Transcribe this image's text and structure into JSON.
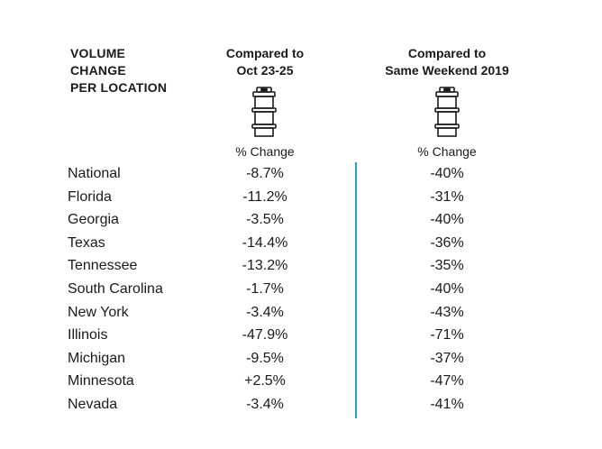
{
  "header": {
    "title_lines": [
      "VOLUME",
      "CHANGE",
      "PER LOCATION"
    ],
    "col1_lines": [
      "Compared to",
      "Oct 23-25"
    ],
    "col2_lines": [
      "Compared to",
      "Same Weekend 2019"
    ],
    "col1_sub": "% Change",
    "col2_sub": "% Change",
    "icon": "keg-icon",
    "divider_color": "#2a9fc9"
  },
  "chart_data": {
    "type": "table",
    "columns": [
      "Compared to Oct 23-25",
      "Compared to Same Weekend 2019"
    ],
    "rows": [
      {
        "location": "National",
        "vs_oct": "-8.7%",
        "vs_2019": "-40%"
      },
      {
        "location": "Florida",
        "vs_oct": "-11.2%",
        "vs_2019": "-31%"
      },
      {
        "location": "Georgia",
        "vs_oct": "-3.5%",
        "vs_2019": "-40%"
      },
      {
        "location": "Texas",
        "vs_oct": "-14.4%",
        "vs_2019": "-36%"
      },
      {
        "location": "Tennessee",
        "vs_oct": "-13.2%",
        "vs_2019": "-35%"
      },
      {
        "location": "South Carolina",
        "vs_oct": "-1.7%",
        "vs_2019": "-40%"
      },
      {
        "location": "New York",
        "vs_oct": "-3.4%",
        "vs_2019": "-43%"
      },
      {
        "location": "Illinois",
        "vs_oct": "-47.9%",
        "vs_2019": "-71%"
      },
      {
        "location": "Michigan",
        "vs_oct": "-9.5%",
        "vs_2019": "-37%"
      },
      {
        "location": "Minnesota",
        "vs_oct": "+2.5%",
        "vs_2019": "-47%"
      },
      {
        "location": "Nevada",
        "vs_oct": "-3.4%",
        "vs_2019": "-41%"
      }
    ]
  }
}
